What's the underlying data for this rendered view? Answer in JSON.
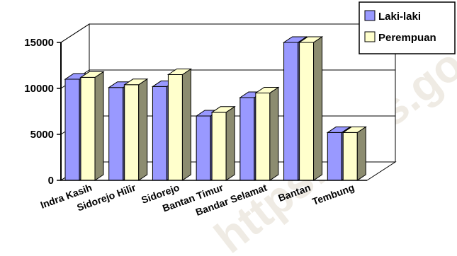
{
  "watermark": "https://bps.go.id",
  "chart_data": {
    "type": "bar",
    "categories": [
      "Indra Kasih",
      "Sidorejo Hilir",
      "Sidorejo",
      "Bantan Timur",
      "Bandar Selamat",
      "Bantan",
      "Tembung"
    ],
    "series": [
      {
        "name": "Laki-laki",
        "values": [
          11000,
          10100,
          10200,
          7000,
          9000,
          15000,
          5200
        ],
        "color": "#9999ff"
      },
      {
        "name": "Perempuan",
        "values": [
          11200,
          10400,
          11500,
          7400,
          9500,
          15000,
          5200
        ],
        "color": "#ffffcc"
      }
    ],
    "yticks": [
      "0",
      "5000",
      "10000",
      "15000"
    ],
    "ylim": [
      0,
      15000
    ],
    "grid": true,
    "legend_position": "top-right"
  }
}
